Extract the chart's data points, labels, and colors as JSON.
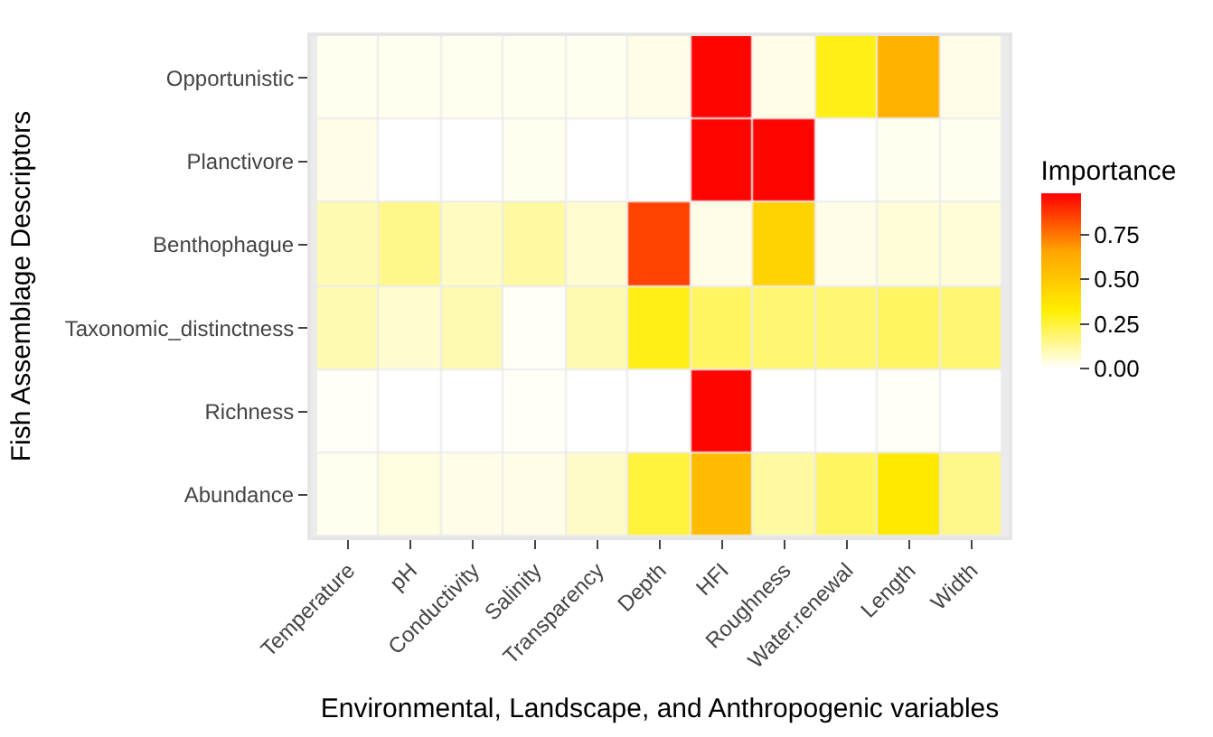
{
  "chart_data": {
    "type": "heatmap",
    "xlabel": "Environmental, Landscape, and Anthropogenic variables",
    "ylabel": "Fish Assemblage Descriptors",
    "clabel": "Importance",
    "categories": [
      "Temperature",
      "pH",
      "Conductivity",
      "Salinity",
      "Transparency",
      "Depth",
      "HFI",
      "Roughness",
      "Water.renewal",
      "Length",
      "Width"
    ],
    "y_categories": [
      "Opportunistic",
      "Planctivore",
      "Benthophague",
      "Taxonomic_distinctness",
      "Richness",
      "Abundance"
    ],
    "cells": [
      [
        0.02,
        0.02,
        0.02,
        0.02,
        0.02,
        0.03,
        0.97,
        0.03,
        0.3,
        0.6,
        0.03
      ],
      [
        0.03,
        0,
        0,
        0.02,
        0,
        0,
        0.97,
        0.97,
        0,
        0.02,
        0.02
      ],
      [
        0.1,
        0.15,
        0.08,
        0.12,
        0.06,
        0.85,
        0.03,
        0.45,
        0.03,
        0.05,
        0.05
      ],
      [
        0.1,
        0.06,
        0.1,
        0.01,
        0.1,
        0.3,
        0.2,
        0.18,
        0.18,
        0.2,
        0.18
      ],
      [
        0.01,
        0,
        0,
        0.01,
        0,
        0,
        0.97,
        0,
        0,
        0.01,
        0
      ],
      [
        0.02,
        0.04,
        0.03,
        0.03,
        0.07,
        0.25,
        0.55,
        0.12,
        0.2,
        0.35,
        0.15
      ]
    ],
    "clim": [
      0,
      0.98
    ],
    "cticks": [
      {
        "value": 0,
        "label": "0.00"
      },
      {
        "value": 0.25,
        "label": "0.25"
      },
      {
        "value": 0.5,
        "label": "0.50"
      },
      {
        "value": 0.75,
        "label": "0.75"
      }
    ],
    "colors": [
      "#ffffff",
      "#ffee00",
      "#ffa500",
      "#ff0000"
    ]
  }
}
